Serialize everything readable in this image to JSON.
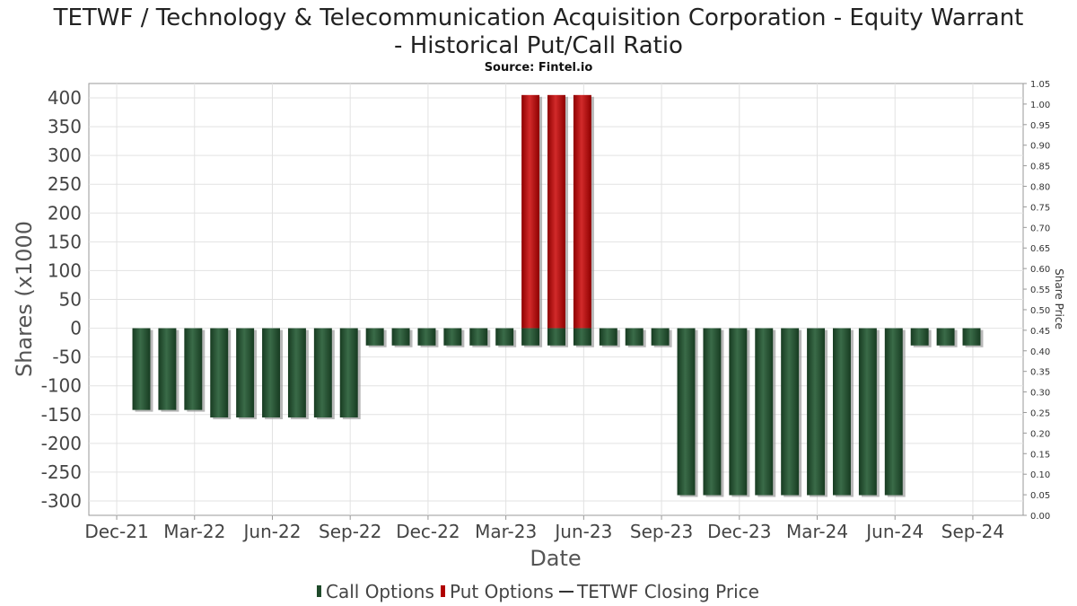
{
  "title_line1": "TETWF / Technology & Telecommunication Acquisition Corporation - Equity Warrant",
  "title_line2": "- Historical Put/Call Ratio",
  "subtitle": "Source: Fintel.io",
  "chart_data": {
    "type": "bar",
    "xlabel": "Date",
    "ylabel": "Shares (x1000",
    "y2label": "Share Price",
    "ylim": [
      -325,
      425
    ],
    "y2lim": [
      0.0,
      1.05
    ],
    "yticks": [
      "400",
      "350",
      "300",
      "250",
      "200",
      "150",
      "100",
      "50",
      "0",
      "-50",
      "-100",
      "-150",
      "-200",
      "-250",
      "-300"
    ],
    "ytick_values": [
      400,
      350,
      300,
      250,
      200,
      150,
      100,
      50,
      0,
      -50,
      -100,
      -150,
      -200,
      -250,
      -300
    ],
    "y2ticks": [
      "1.05",
      "1.00",
      "0.95",
      "0.90",
      "0.85",
      "0.80",
      "0.75",
      "0.70",
      "0.65",
      "0.60",
      "0.55",
      "0.50",
      "0.45",
      "0.40",
      "0.35",
      "0.30",
      "0.25",
      "0.20",
      "0.15",
      "0.10",
      "0.05",
      "0.00"
    ],
    "y2tick_values": [
      1.05,
      1.0,
      0.95,
      0.9,
      0.85,
      0.8,
      0.75,
      0.7,
      0.65,
      0.6,
      0.55,
      0.5,
      0.45,
      0.4,
      0.35,
      0.3,
      0.25,
      0.2,
      0.15,
      0.1,
      0.05,
      0.0
    ],
    "xticks": [
      "Dec-21",
      "Mar-22",
      "Jun-22",
      "Sep-22",
      "Dec-22",
      "Mar-23",
      "Jun-23",
      "Sep-23",
      "Dec-23",
      "Mar-24",
      "Jun-24",
      "Sep-24"
    ],
    "grid": true,
    "legend_position": "bottom",
    "series": [
      {
        "name": "Call Options",
        "color": "#1f4a2a",
        "values": [
          -142,
          -142,
          -142,
          -155,
          -155,
          -155,
          -155,
          -155,
          -155,
          -30,
          -30,
          -30,
          -30,
          -30,
          -30,
          -30,
          -30,
          -30,
          -30,
          -30,
          -30,
          -290,
          -290,
          -290,
          -290,
          -290,
          -290,
          -290,
          -290,
          -290,
          -30,
          -30,
          -30
        ]
      },
      {
        "name": "Put Options",
        "color": "#b00000",
        "values": [
          0,
          0,
          0,
          0,
          0,
          0,
          0,
          0,
          0,
          0,
          0,
          0,
          0,
          0,
          0,
          405,
          405,
          405,
          0,
          0,
          0,
          0,
          0,
          0,
          0,
          0,
          0,
          0,
          0,
          0,
          0,
          0,
          0
        ]
      },
      {
        "name": "TETWF Closing Price",
        "color": "#333333",
        "values": []
      }
    ]
  }
}
